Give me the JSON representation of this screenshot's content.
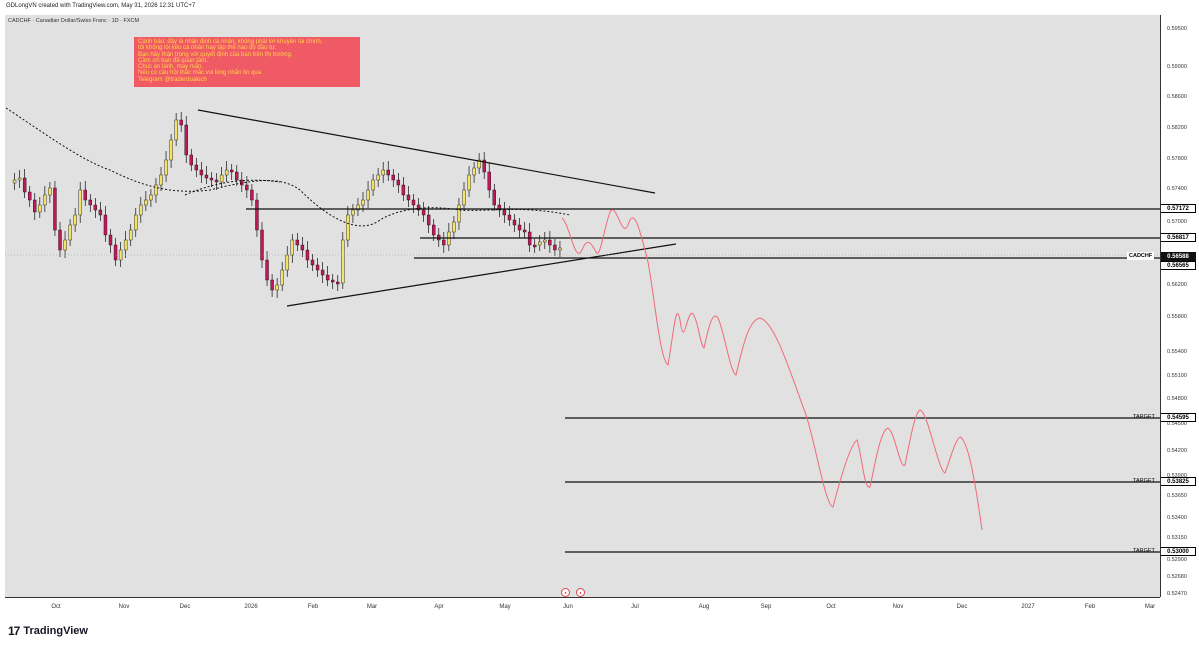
{
  "header": {
    "credit": "GDLongVN created with TradingView.com, May 31, 2026 12:31 UTC+7",
    "symbol_line": "CADCHF · Canadian Dollar/Swiss Franc · 1D · FXCM"
  },
  "note": {
    "lines": [
      "Cảnh báo: đây là nhận định cá nhân, không phải lời khuyên tài chính,",
      "tôi không lôi kéo cá nhân hay tập thể nào đó đầu tư.",
      "Bạn hãy thận trọng với quyết định của bạn trên thị trường.",
      "Cảm ơn bạn đã quan tâm.",
      "Chúc an lành, may mắn.",
      "Nếu có câu hỏi thắc mắc vui lòng nhắn tin qua",
      "Telegram @traderduakich"
    ],
    "bg_color": "#f05a64",
    "text_color": "#ffd24a"
  },
  "price_ticks": [
    "0.59500",
    "0.59000",
    "0.58600",
    "0.58200",
    "0.57800",
    "0.57400",
    "0.57000",
    "0.56200",
    "0.55800",
    "0.55400",
    "0.55100",
    "0.54800",
    "0.54500",
    "0.54200",
    "0.53900",
    "0.53650",
    "0.53400",
    "0.53150",
    "0.52900",
    "0.52680",
    "0.52470"
  ],
  "price_labels": {
    "l1": "0.57172",
    "l2": "0.56817",
    "l3": "0.56588",
    "l4": "0.56565",
    "t1": "0.54595",
    "t2": "0.53825",
    "t3": "0.53000"
  },
  "symbol_tag": "CADCHF",
  "target_label": "TARGET",
  "time_ticks": [
    "Oct",
    "Nov",
    "Dec",
    "2026",
    "Feb",
    "Mar",
    "Apr",
    "May",
    "Jun",
    "Jul",
    "Aug",
    "Sep",
    "Oct",
    "Nov",
    "Dec",
    "2027",
    "Feb",
    "Mar"
  ],
  "brand": {
    "mark": "17",
    "name": "TradingView"
  },
  "colors": {
    "chart_bg": "#e1e1e1",
    "bull_candle": "#f2e36b",
    "bear_candle": "#c2185b",
    "projection": "#f06a78",
    "trendline": "#111111"
  },
  "chart_data": {
    "type": "candlestick",
    "title": "CADCHF · Canadian Dollar/Swiss Franc · 1D · FXCM",
    "ylim": [
      0.5247,
      0.597
    ],
    "horizontal_levels": [
      0.57172,
      0.56817,
      0.56565
    ],
    "targets": [
      0.54595,
      0.53825,
      0.53
    ],
    "last_price": 0.56588,
    "x_ticks": [
      "Oct",
      "Nov",
      "Dec",
      "2026",
      "Feb",
      "Mar",
      "Apr",
      "May",
      "Jun",
      "Jul",
      "Aug",
      "Sep",
      "Oct",
      "Nov",
      "Dec",
      "2027",
      "Feb",
      "Mar"
    ]
  }
}
